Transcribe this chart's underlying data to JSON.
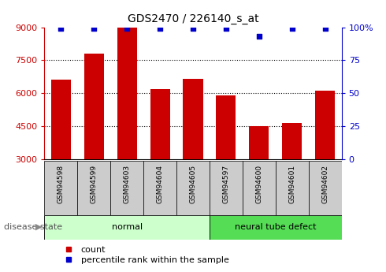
{
  "title": "GDS2470 / 226140_s_at",
  "samples": [
    "GSM94598",
    "GSM94599",
    "GSM94603",
    "GSM94604",
    "GSM94605",
    "GSM94597",
    "GSM94600",
    "GSM94601",
    "GSM94602"
  ],
  "counts": [
    6600,
    7800,
    9000,
    6200,
    6650,
    5900,
    4500,
    4650,
    6100
  ],
  "percentile_ranks": [
    99,
    99,
    99,
    99,
    99,
    99,
    93,
    99,
    99
  ],
  "bar_color": "#cc0000",
  "dot_color": "#0000cc",
  "ylim_left": [
    3000,
    9000
  ],
  "ylim_right": [
    0,
    100
  ],
  "yticks_left": [
    3000,
    4500,
    6000,
    7500,
    9000
  ],
  "yticks_right": [
    0,
    25,
    50,
    75,
    100
  ],
  "yticklabels_right": [
    "0",
    "25",
    "50",
    "75",
    "100%"
  ],
  "groups": [
    {
      "label": "normal",
      "start": 0,
      "end": 5,
      "color": "#ccffcc"
    },
    {
      "label": "neural tube defect",
      "start": 5,
      "end": 9,
      "color": "#55dd55"
    }
  ],
  "disease_state_label": "disease state",
  "legend_count_label": "count",
  "legend_pct_label": "percentile rank within the sample",
  "grid_color": "#000000",
  "bar_bottom": 3000,
  "tick_label_bg": "#cccccc"
}
